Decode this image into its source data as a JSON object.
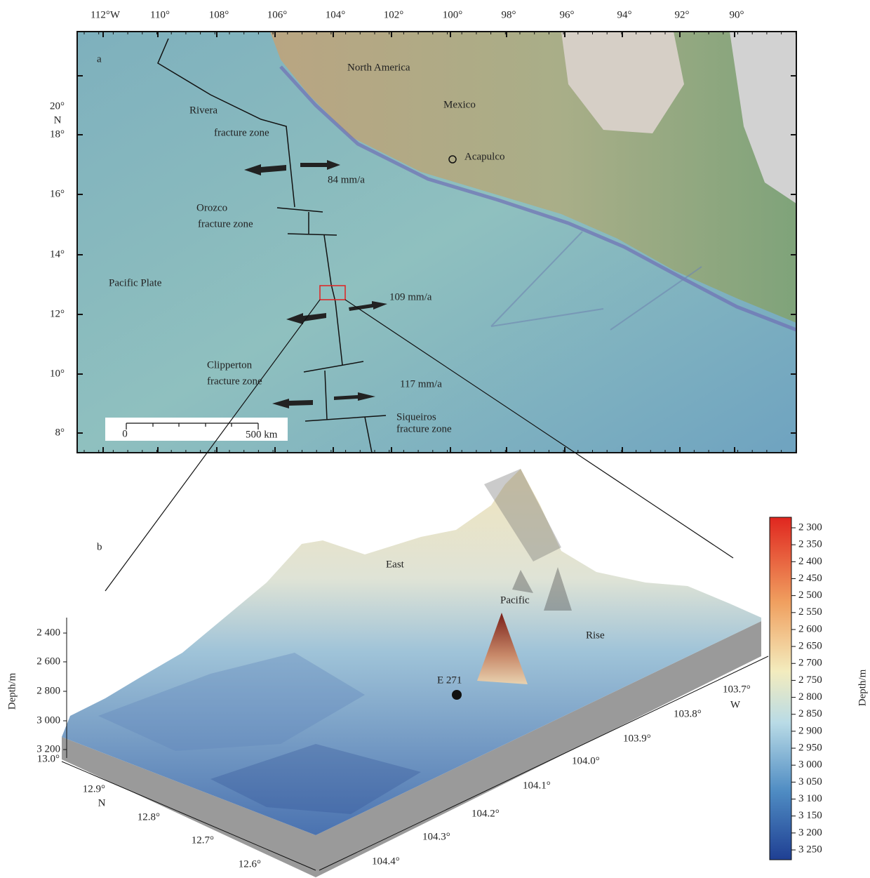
{
  "map": {
    "panel_label": "a",
    "lon_labels": [
      "112°W",
      "110°",
      "108°",
      "106°",
      "104°",
      "102°",
      "100°",
      "98°",
      "96°",
      "94°",
      "92°",
      "90°"
    ],
    "lat_labels": [
      "20°",
      "18°",
      "16°",
      "14°",
      "12°",
      "10°",
      "8°"
    ],
    "lat_unit": "N",
    "labels": [
      "North America",
      "Mexico",
      "Acapulco",
      "Rivera",
      "fracture zone",
      "84 mm/a",
      "Orozco",
      "fracture zone",
      "Pacific Plate",
      "109 mm/a",
      "Clipperton",
      "fracture zone",
      "117 mm/a",
      "Siqueiros",
      "fracture zone"
    ],
    "scale_bar": [
      "0",
      "500 km"
    ]
  },
  "surface": {
    "panel_label": "b",
    "depth_axis_title": "Depth/m",
    "depth_ticks": [
      "2 400",
      "2 600",
      "2 800",
      "3 000",
      "3 200"
    ],
    "lat_ticks": [
      "13.0°",
      "12.9°",
      "12.8°",
      "12.7°",
      "12.6°"
    ],
    "lat_unit": "N",
    "lon_ticks": [
      "103.7°",
      "103.8°",
      "103.9°",
      "104.0°",
      "104.1°",
      "104.2°",
      "104.3°",
      "104.4°"
    ],
    "lon_unit": "W",
    "labels": [
      "East",
      "Pacific",
      "Rise",
      "E 271"
    ]
  },
  "colorbar": {
    "title": "Depth/m",
    "ticks": [
      "2 300",
      "2 350",
      "2 400",
      "2 450",
      "2 500",
      "2 550",
      "2 600",
      "2 650",
      "2 700",
      "2 750",
      "2 800",
      "2 850",
      "2 900",
      "2 950",
      "3 000",
      "3 050",
      "3 100",
      "3 150",
      "3 200",
      "3 250"
    ]
  }
}
